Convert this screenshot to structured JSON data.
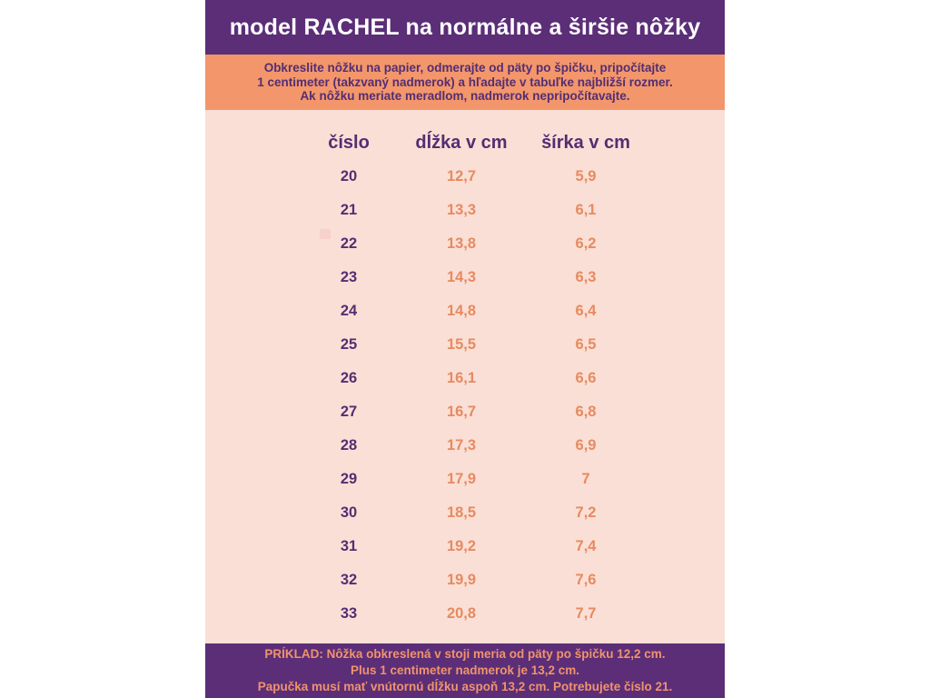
{
  "header": {
    "title": "model RACHEL na normálne a širšie nôžky"
  },
  "instructions": {
    "lines": [
      "Obkreslite nôžku na papier, odmerajte od päty po špičku, pripočítajte",
      "1 centimeter (takzvaný nadmerok) a hľadajte v tabuľke najbližší rozmer.",
      "Ak nôžku meriate meradlom, nadmerok nepripočítavajte."
    ]
  },
  "table": {
    "columns": [
      "číslo",
      "dĺžka v cm",
      "šírka v cm"
    ],
    "rows": [
      [
        "20",
        "12,7",
        "5,9"
      ],
      [
        "21",
        "13,3",
        "6,1"
      ],
      [
        "22",
        "13,8",
        "6,2"
      ],
      [
        "23",
        "14,3",
        "6,3"
      ],
      [
        "24",
        "14,8",
        "6,4"
      ],
      [
        "25",
        "15,5",
        "6,5"
      ],
      [
        "26",
        "16,1",
        "6,6"
      ],
      [
        "27",
        "16,7",
        "6,8"
      ],
      [
        "28",
        "17,3",
        "6,9"
      ],
      [
        "29",
        "17,9",
        "7"
      ],
      [
        "30",
        "18,5",
        "7,2"
      ],
      [
        "31",
        "19,2",
        "7,4"
      ],
      [
        "32",
        "19,9",
        "7,6"
      ],
      [
        "33",
        "20,8",
        "7,7"
      ]
    ]
  },
  "example": {
    "lines": [
      "PRÍKLAD: Nôžka obkreslená v stoji meria od päty po špičku 12,2 cm.",
      "Plus 1 centimeter nadmerok je 13,2 cm.",
      "Papučka musí mať vnútornú dĺžku aspoň 13,2 cm. Potrebujete číslo 21."
    ]
  },
  "colors": {
    "purple_bg": "#5b2e77",
    "orange_bg": "#f3966c",
    "pink_bg": "#fadfd6",
    "purple_text": "#532e71",
    "orange_text": "#e78a60",
    "footer_text": "#f0936d",
    "white_text": "#ffffff",
    "watermark": "#f6cdc9"
  }
}
